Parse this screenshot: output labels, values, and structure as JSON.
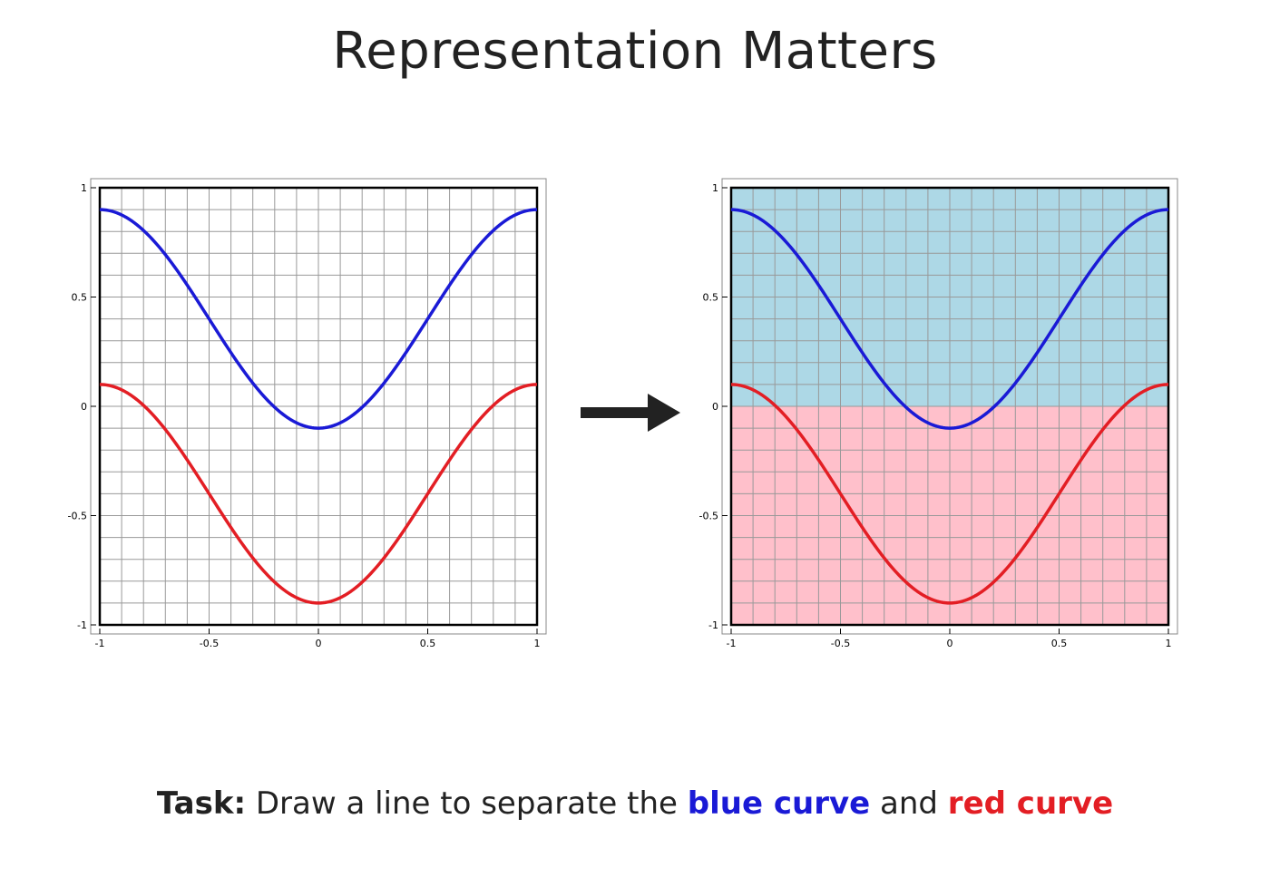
{
  "title": "Representation Matters",
  "caption": {
    "lead": "Task:",
    "text1": " Draw a line to separate the ",
    "blue_label": "blue curve",
    "text2": " and ",
    "red_label": "red curve"
  },
  "colors": {
    "blue_curve": "#1a1ad6",
    "red_curve": "#e31e24",
    "region_blue": "#add8e6",
    "region_red": "#ffc0cb",
    "grid": "#999999"
  },
  "chart_data": [
    {
      "type": "line",
      "title": "",
      "xlabel": "",
      "ylabel": "",
      "xlim": [
        -1,
        1
      ],
      "ylim": [
        -1,
        1
      ],
      "x_ticks": [
        "-1",
        "-0.5",
        "0",
        "0.5",
        "1"
      ],
      "y_ticks": [
        "1",
        "0.5",
        "0",
        "-0.5",
        "-1"
      ],
      "grid": true,
      "series": [
        {
          "color": "#1a1ad6",
          "function": "0.9 - cos^2(pi*x/2)",
          "x": [
            -1,
            -0.5,
            0,
            0.5,
            1
          ],
          "y": [
            0.9,
            0.4,
            -0.1,
            0.4,
            0.9
          ]
        },
        {
          "color": "#e31e24",
          "function": "0.1 - cos^2(pi*x/2)",
          "x": [
            -1,
            -0.5,
            0,
            0.5,
            1
          ],
          "y": [
            0.1,
            -0.4,
            -0.9,
            -0.4,
            0.1
          ]
        }
      ],
      "regions": []
    },
    {
      "type": "line",
      "title": "",
      "xlabel": "",
      "ylabel": "",
      "xlim": [
        -1,
        1
      ],
      "ylim": [
        -1,
        1
      ],
      "x_ticks": [
        "-1",
        "-0.5",
        "0",
        "0.5",
        "1"
      ],
      "y_ticks": [
        "1",
        "0.5",
        "0",
        "-0.5",
        "-1"
      ],
      "grid": true,
      "series": [
        {
          "color": "#1a1ad6",
          "function": "0.9 - cos^2(pi*x/2)",
          "x": [
            -1,
            -0.5,
            0,
            0.5,
            1
          ],
          "y": [
            0.9,
            0.4,
            -0.1,
            0.4,
            0.9
          ]
        },
        {
          "color": "#e31e24",
          "function": "0.1 - cos^2(pi*x/2)",
          "x": [
            -1,
            -0.5,
            0,
            0.5,
            1
          ],
          "y": [
            0.1,
            -0.4,
            -0.9,
            -0.4,
            0.1
          ]
        }
      ],
      "regions": [
        {
          "color": "#add8e6",
          "y_from": 0.0,
          "y_to": 1.0
        },
        {
          "color": "#ffc0cb",
          "y_from": -1.0,
          "y_to": 0.0
        }
      ]
    }
  ]
}
